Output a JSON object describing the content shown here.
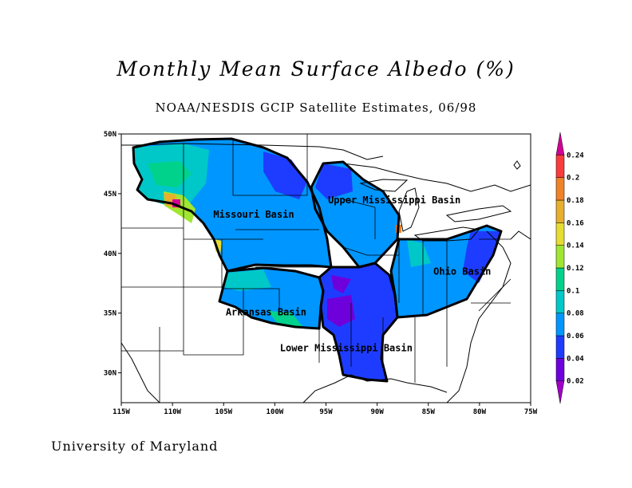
{
  "title": "Monthly Mean Surface Albedo (%)",
  "subtitle": "NOAA/NESDIS GCIP Satellite Estimates, 06/98",
  "footer": "University of Maryland",
  "map": {
    "lon_range": [
      -115,
      -75
    ],
    "lat_range": [
      27.5,
      50
    ],
    "lon_ticks": [
      "115W",
      "110W",
      "105W",
      "100W",
      "95W",
      "90W",
      "85W",
      "80W",
      "75W"
    ],
    "lat_ticks": [
      "30N",
      "35N",
      "40N",
      "45N",
      "50N"
    ],
    "basins": [
      {
        "name": "Missouri Basin",
        "lon": -106,
        "lat": 43.0
      },
      {
        "name": "Upper Mississippi Basin",
        "lon": -94.8,
        "lat": 44.2
      },
      {
        "name": "Ohio Basin",
        "lon": -84.5,
        "lat": 38.2
      },
      {
        "name": "Arkansas Basin",
        "lon": -104.8,
        "lat": 34.8
      },
      {
        "name": "Lower Mississippi Basin",
        "lon": -99.5,
        "lat": 31.8
      }
    ]
  },
  "colorbar": {
    "levels": [
      "0.02",
      "0.04",
      "0.06",
      "0.08",
      "0.1",
      "0.12",
      "0.14",
      "0.16",
      "0.18",
      "0.2",
      "0.24"
    ],
    "colors": [
      "#a000c8",
      "#6e00dc",
      "#1e3cff",
      "#0096ff",
      "#00c8c8",
      "#00d28c",
      "#a0e632",
      "#e6dc32",
      "#e6af2d",
      "#f08228",
      "#fa3c3c",
      "#d20096"
    ]
  }
}
